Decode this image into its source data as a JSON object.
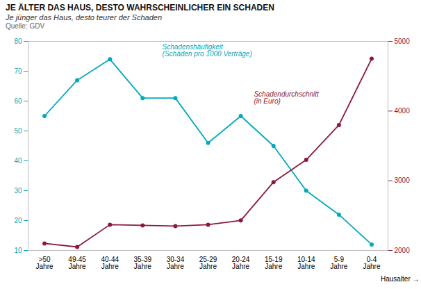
{
  "chart_data": {
    "type": "line",
    "title": "JE ÄLTER DAS HAUS, DESTO WAHRSCHEINLICHER EIN SCHADEN",
    "subtitle": "Je jünger das Haus, desto teurer der Schaden",
    "source": "Quelle: GDV",
    "x_label": "Hausalter",
    "categories": [
      ">50\nJahre",
      "49-45\nJahre",
      "40-44\nJahre",
      "35-39\nJahre",
      "30-34\nJahre",
      "25-29\nJahre",
      "20-24\nJahre",
      "15-19\nJahre",
      "10-14\nJahre",
      "5-9\nJahre",
      "0-4\nJahre"
    ],
    "series": [
      {
        "name": "Schadenshäufigkeit\n(Schäden pro 1000 Verträge)",
        "color": "#00AABB",
        "marker": "circle",
        "values": [
          55,
          67,
          74,
          61,
          61,
          46,
          55,
          45,
          30,
          22,
          12
        ]
      },
      {
        "name": "Schadendurchschnitt\n(in Euro)",
        "color": "#8B1A3A",
        "marker": "circle",
        "axis": "y2",
        "values": [
          2100,
          2050,
          2370,
          2360,
          2350,
          2370,
          2430,
          2980,
          3300,
          3800,
          4750
        ]
      }
    ],
    "ylim": [
      10,
      80
    ],
    "yticks": [
      10,
      20,
      30,
      40,
      50,
      60,
      70,
      80
    ],
    "y2lim": [
      2000,
      5000
    ],
    "y2ticks": [
      2000,
      3000,
      4000,
      5000
    ],
    "grid": false
  }
}
